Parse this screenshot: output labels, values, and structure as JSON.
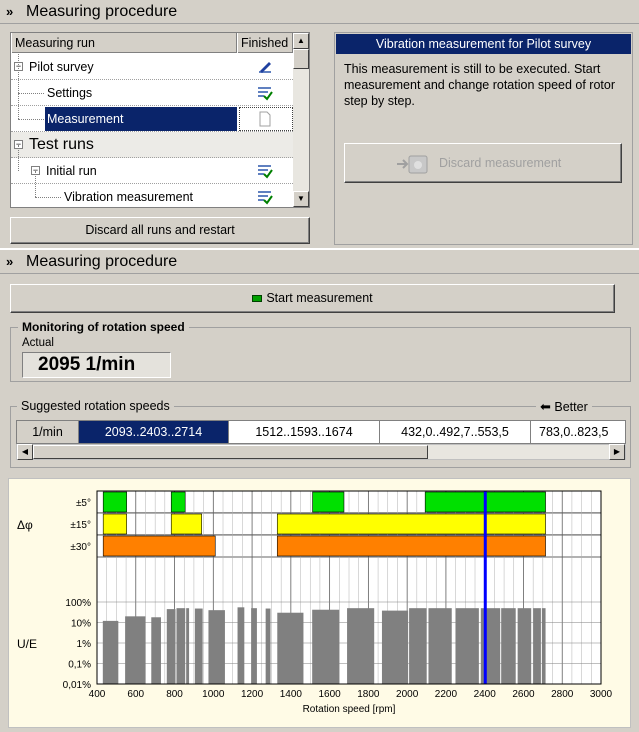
{
  "section1": {
    "title": "Measuring procedure"
  },
  "tree": {
    "col_run": "Measuring run",
    "col_finished": "Finished",
    "rows": [
      {
        "label": "Pilot survey"
      },
      {
        "label": "Settings"
      },
      {
        "label": "Measurement"
      },
      {
        "label": "Test runs"
      },
      {
        "label": "Initial run"
      },
      {
        "label": "Vibration measurement"
      }
    ]
  },
  "discard_all_label": "Discard all runs and restart",
  "info": {
    "title": "Vibration measurement for Pilot survey",
    "text": "This measurement is still to be executed. Start measurement and change rotation speed of rotor step by step.",
    "discard_label": "Discard measurement"
  },
  "section2": {
    "title": "Measuring procedure"
  },
  "start_label": "Start measurement",
  "monitoring": {
    "title": "Monitoring of rotation speed",
    "actual_label": "Actual",
    "actual_value": "2095 1/min"
  },
  "suggested": {
    "title": "Suggested rotation speeds",
    "better_label": "Better",
    "unit": "1/min",
    "ranges": [
      "2093..2403..2714",
      "1512..1593..1674",
      "432,0..492,7..553,5",
      "783,0..823,5"
    ]
  },
  "chart_data": {
    "type": "bar",
    "xlabel": "Rotation speed [rpm]",
    "xlim": [
      400,
      3000
    ],
    "xticks": [
      400,
      600,
      800,
      1000,
      1200,
      1400,
      1600,
      1800,
      2000,
      2200,
      2400,
      2600,
      2800,
      3000
    ],
    "ylabel": "U/E",
    "yscale": "log",
    "ylim": [
      0.01,
      100
    ],
    "yticks": [
      "100%",
      "10%",
      "1%",
      "0,1%",
      "0,01%"
    ],
    "phase_label": "Δφ",
    "phase_rows": [
      "±5°",
      "±15°",
      "±30°"
    ],
    "marker_rpm": 2403,
    "bars": [
      {
        "x0": 430,
        "x1": 510,
        "value": 12
      },
      {
        "x0": 545,
        "x1": 650,
        "value": 20
      },
      {
        "x0": 680,
        "x1": 730,
        "value": 18
      },
      {
        "x0": 760,
        "x1": 805,
        "value": 45
      },
      {
        "x0": 810,
        "x1": 855,
        "value": 50
      },
      {
        "x0": 860,
        "x1": 875,
        "value": 50
      },
      {
        "x0": 905,
        "x1": 945,
        "value": 48
      },
      {
        "x0": 975,
        "x1": 1060,
        "value": 40
      },
      {
        "x0": 1125,
        "x1": 1160,
        "value": 55
      },
      {
        "x0": 1195,
        "x1": 1225,
        "value": 50
      },
      {
        "x0": 1270,
        "x1": 1295,
        "value": 48
      },
      {
        "x0": 1330,
        "x1": 1465,
        "value": 30
      },
      {
        "x0": 1510,
        "x1": 1650,
        "value": 42
      },
      {
        "x0": 1690,
        "x1": 1830,
        "value": 50
      },
      {
        "x0": 1870,
        "x1": 2005,
        "value": 38
      },
      {
        "x0": 2010,
        "x1": 2100,
        "value": 50
      },
      {
        "x0": 2110,
        "x1": 2230,
        "value": 50
      },
      {
        "x0": 2250,
        "x1": 2370,
        "value": 50
      },
      {
        "x0": 2380,
        "x1": 2480,
        "value": 50
      },
      {
        "x0": 2485,
        "x1": 2560,
        "value": 50
      },
      {
        "x0": 2570,
        "x1": 2640,
        "value": 50
      },
      {
        "x0": 2650,
        "x1": 2690,
        "value": 50
      },
      {
        "x0": 2695,
        "x1": 2714,
        "value": 50
      }
    ],
    "phase_bands": [
      {
        "row": 0,
        "x0": 432,
        "x1": 553,
        "color": "#00e000"
      },
      {
        "row": 0,
        "x0": 783,
        "x1": 855,
        "color": "#00e000"
      },
      {
        "row": 0,
        "x0": 1512,
        "x1": 1674,
        "color": "#00e000"
      },
      {
        "row": 0,
        "x0": 2093,
        "x1": 2714,
        "color": "#00e000"
      },
      {
        "row": 1,
        "x0": 432,
        "x1": 553,
        "color": "#ffff00"
      },
      {
        "row": 1,
        "x0": 783,
        "x1": 940,
        "color": "#ffff00"
      },
      {
        "row": 1,
        "x0": 1330,
        "x1": 2714,
        "color": "#ffff00"
      },
      {
        "row": 2,
        "x0": 432,
        "x1": 1010,
        "color": "#ff8000"
      },
      {
        "row": 2,
        "x0": 1330,
        "x1": 2714,
        "color": "#ff8000"
      }
    ],
    "colors": {
      "bar": "#808080",
      "marker": "#0000ff",
      "grid": "#808080"
    }
  }
}
